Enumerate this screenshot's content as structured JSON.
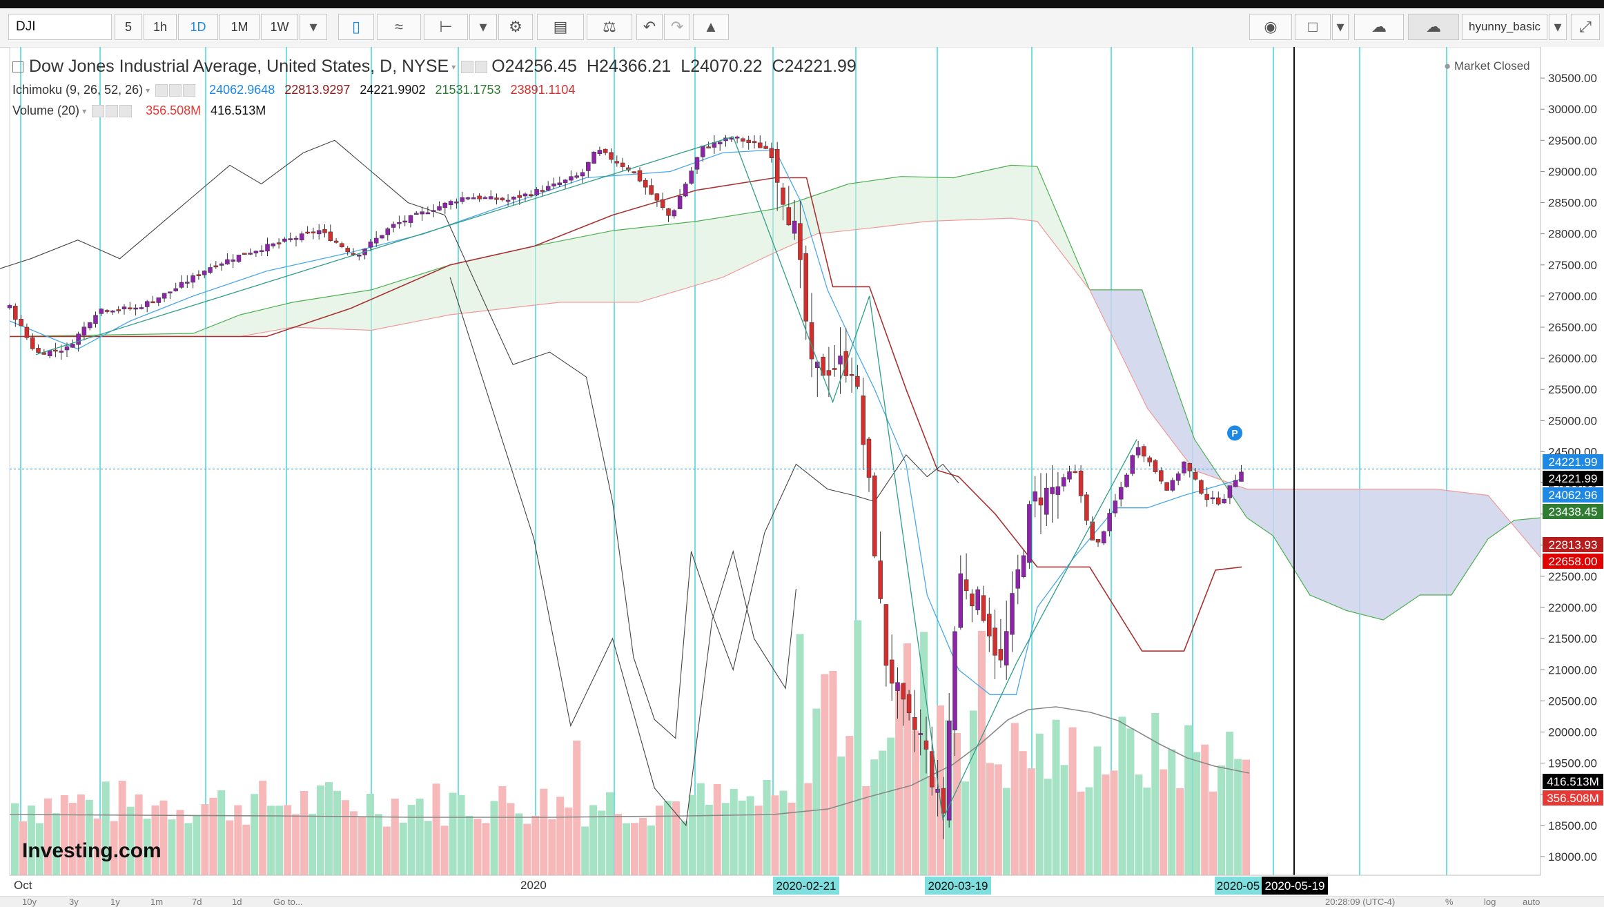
{
  "toolbar": {
    "symbol": "DJI",
    "intervals": [
      {
        "label": "5",
        "active": false
      },
      {
        "label": "1h",
        "active": false
      },
      {
        "label": "1D",
        "active": true
      },
      {
        "label": "1M",
        "active": false
      },
      {
        "label": "1W",
        "active": false
      }
    ],
    "user": "hyunny_basic",
    "icons": [
      "chevron-down-icon",
      "candles-icon",
      "area-chart-icon",
      "bar-style-icon",
      "gear-icon",
      "indicators-icon",
      "compare-icon",
      "undo-icon",
      "redo-icon",
      "alert-icon",
      "camera-icon",
      "box-icon",
      "cloud-download-icon",
      "cloud-upload-icon",
      "fullscreen-icon"
    ]
  },
  "legend": {
    "title": "Dow Jones Industrial Average, United States, D, NYSE",
    "o_label": "O",
    "o_value": "24256.45",
    "h_label": "H",
    "h_value": "24366.21",
    "l_label": "L",
    "l_value": "24070.22",
    "c_label": "C",
    "c_value": "24221.99",
    "ichimoku_label": "Ichimoku (9, 26, 52, 26)",
    "ichimoku_values": [
      "24062.9648",
      "22813.9297",
      "24221.9902",
      "21531.1753",
      "23891.1104"
    ],
    "volume_label": "Volume (20)",
    "volume_values": [
      "356.508M",
      "416.513M"
    ]
  },
  "market_status": "Market Closed",
  "colors": {
    "up": "#8e24aa",
    "down": "#d32f2f",
    "tenkan": "#4aa8e8",
    "kijun": "#a83232",
    "chikou": "#444444",
    "senkou_a": "#4caf50",
    "senkou_b": "#ef9a9a",
    "vol_up": "#a5e3c4",
    "vol_down": "#f6b8b8",
    "vertical_line": "#4fd9d9"
  },
  "chart_data": {
    "type": "candlestick",
    "y_axis_ticks": [
      "30500.00",
      "30000.00",
      "29500.00",
      "29000.00",
      "28500.00",
      "28000.00",
      "27500.00",
      "27000.00",
      "26500.00",
      "26000.00",
      "25500.00",
      "25000.00",
      "24500.00",
      "24000.00",
      "23500.00",
      "23000.00",
      "22500.00",
      "22000.00",
      "21500.00",
      "21000.00",
      "20500.00",
      "20000.00",
      "19500.00",
      "19000.00",
      "18500.00",
      "18000.00"
    ],
    "y_range": [
      17700,
      31000
    ],
    "x_axis_labels": [
      "Oct",
      "2020"
    ],
    "x_highlight_labels": [
      "2020-02-21",
      "2020-03-19",
      "2020-05",
      "2020-05-19"
    ],
    "price_tags": [
      {
        "text": "24221.99",
        "bg": "#1e88e5",
        "fg": "#ffffff"
      },
      {
        "text": "24221.99",
        "bg": "#000000",
        "fg": "#ffffff"
      },
      {
        "text": "24062.96",
        "bg": "#1e88e5",
        "fg": "#ffffff"
      },
      {
        "text": "23438.45",
        "bg": "#2e7d32",
        "fg": "#ffffff"
      },
      {
        "text": "22813.93",
        "bg": "#b71c1c",
        "fg": "#ffffff"
      },
      {
        "text": "22658.00",
        "bg": "#e00000",
        "fg": "#ffffff"
      },
      {
        "text": "416.513M",
        "bg": "#000000",
        "fg": "#ffffff"
      },
      {
        "text": "356.508M",
        "bg": "#e53935",
        "fg": "#ffffff"
      }
    ],
    "marker": "P",
    "watermark": "Investing.com",
    "close_path": [
      [
        "2019-09-27",
        26820
      ],
      [
        "2019-10-02",
        26080
      ],
      [
        "2019-10-08",
        26160
      ],
      [
        "2019-10-14",
        26790
      ],
      [
        "2019-10-21",
        26800
      ],
      [
        "2019-10-28",
        27090
      ],
      [
        "2019-11-04",
        27460
      ],
      [
        "2019-11-11",
        27690
      ],
      [
        "2019-11-18",
        27870
      ],
      [
        "2019-11-25",
        28050
      ],
      [
        "2019-12-02",
        27650
      ],
      [
        "2019-12-09",
        28130
      ],
      [
        "2019-12-16",
        28380
      ],
      [
        "2019-12-23",
        28600
      ],
      [
        "2019-12-31",
        28538
      ],
      [
        "2020-01-08",
        28750
      ],
      [
        "2020-01-14",
        28950
      ],
      [
        "2020-01-17",
        29348
      ],
      [
        "2020-01-24",
        28990
      ],
      [
        "2020-01-31",
        28256
      ],
      [
        "2020-02-06",
        29380
      ],
      [
        "2020-02-12",
        29550
      ],
      [
        "2020-02-19",
        29348
      ],
      [
        "2020-02-24",
        27960
      ],
      [
        "2020-02-27",
        25766
      ],
      [
        "2020-03-03",
        25917
      ],
      [
        "2020-03-06",
        25864
      ],
      [
        "2020-03-09",
        23851
      ],
      [
        "2020-03-12",
        21200
      ],
      [
        "2020-03-16",
        20188
      ],
      [
        "2020-03-19",
        19898
      ],
      [
        "2020-03-23",
        18591
      ],
      [
        "2020-03-26",
        22552
      ],
      [
        "2020-03-31",
        21917
      ],
      [
        "2020-04-03",
        21052
      ],
      [
        "2020-04-09",
        23719
      ],
      [
        "2020-04-14",
        23949
      ],
      [
        "2020-04-17",
        24242
      ],
      [
        "2020-04-21",
        22900
      ],
      [
        "2020-04-27",
        24134
      ],
      [
        "2020-04-29",
        24634
      ],
      [
        "2020-05-05",
        23883
      ],
      [
        "2020-05-08",
        24331
      ],
      [
        "2020-05-12",
        23764
      ],
      [
        "2020-05-15",
        23685
      ],
      [
        "2020-05-19",
        24221
      ]
    ]
  },
  "bottom": {
    "ranges": [
      "10y",
      "3y",
      "1y",
      "1m",
      "7d",
      "1d",
      "Go to..."
    ],
    "time": "20:28:09 (UTC-4)",
    "pct": "%",
    "log": "log",
    "auto": "auto"
  }
}
